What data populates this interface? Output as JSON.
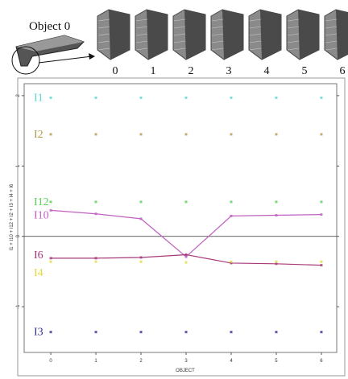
{
  "figure": {
    "object_label": "Object 0",
    "thumbnail_labels": [
      "0",
      "1",
      "2",
      "3",
      "4",
      "5",
      "6"
    ]
  },
  "chart_data": {
    "type": "line",
    "x_label": "OBJECT",
    "y_label": "I1 + I10 + I12 + I2 + I3 + I4 + I6",
    "x": [
      0,
      1,
      2,
      3,
      4,
      5,
      6
    ],
    "xlim": [
      -0.59,
      6.34
    ],
    "xticks": [
      0,
      1,
      2,
      3,
      4,
      5,
      6
    ],
    "ylim": [
      -1.65,
      2.17
    ],
    "yticks": [
      -1,
      0,
      1,
      2
    ],
    "series": [
      {
        "name": "I1",
        "color": "#5ed4d8",
        "mode": "markers",
        "values": [
          1.97,
          1.97,
          1.97,
          1.97,
          1.97,
          1.97,
          1.97
        ]
      },
      {
        "name": "I2",
        "color": "#b09a48",
        "mode": "markers",
        "values": [
          1.45,
          1.45,
          1.45,
          1.45,
          1.45,
          1.45,
          1.45
        ]
      },
      {
        "name": "I12",
        "color": "#58d058",
        "mode": "markers",
        "values": [
          0.49,
          0.49,
          0.49,
          0.49,
          0.49,
          0.49,
          0.49
        ]
      },
      {
        "name": "I10",
        "color": "#c060c0",
        "mode": "lines+markers",
        "values": [
          0.37,
          0.32,
          0.25,
          -0.29,
          0.29,
          0.3,
          0.31
        ]
      },
      {
        "name": "I6",
        "color": "#a83878",
        "mode": "lines+markers",
        "values": [
          -0.31,
          -0.31,
          -0.3,
          -0.26,
          -0.38,
          -0.39,
          -0.41
        ]
      },
      {
        "name": "I4",
        "color": "#e4dc3c",
        "mode": "markers",
        "values": [
          -0.36,
          -0.36,
          -0.36,
          -0.37,
          -0.36,
          -0.36,
          -0.36
        ]
      },
      {
        "name": "I3",
        "color": "#303090",
        "mode": "markers",
        "values": [
          -1.36,
          -1.36,
          -1.36,
          -1.36,
          -1.36,
          -1.36,
          -1.36
        ]
      }
    ]
  }
}
